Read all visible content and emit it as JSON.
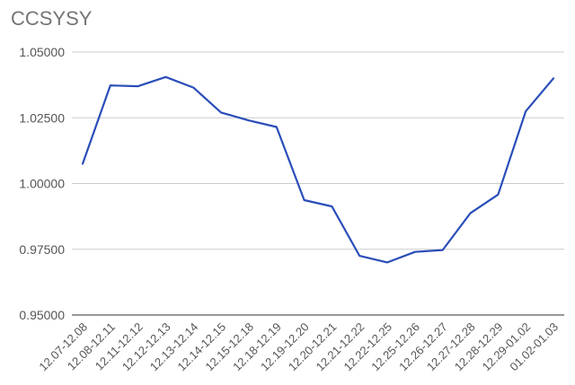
{
  "chart_data": {
    "type": "line",
    "title": "CCSYSY",
    "xlabel": "",
    "ylabel": "",
    "categories": [
      "12.07-12.08",
      "12.08-12.11",
      "12.11-12.12",
      "12.12-12.13",
      "12.13-12.14",
      "12.14-12.15",
      "12.15-12.18",
      "12.18-12.19",
      "12.19-12.20",
      "12.20-12.21",
      "12.21-12.22",
      "12.22-12.25",
      "12.25-12.26",
      "12.26-12.27",
      "12.27-12.28",
      "12.28-12.29",
      "12.29-01.02",
      "01.02-01.03"
    ],
    "series": [
      {
        "values": [
          1.0075,
          1.0373,
          1.037,
          1.0405,
          1.0365,
          1.027,
          1.024,
          1.0215,
          0.9937,
          0.9913,
          0.9725,
          0.97,
          0.974,
          0.9747,
          0.9887,
          0.9958,
          1.0275,
          1.04
        ],
        "color": "#2a4db8"
      }
    ],
    "yticks": [
      "1.05000",
      "1.02500",
      "1.00000",
      "0.97500",
      "0.95000"
    ],
    "ytick_values": [
      1.05,
      1.025,
      1.0,
      0.975,
      0.95
    ],
    "ylim": [
      0.95,
      1.05
    ],
    "grid": true,
    "legend": "none"
  }
}
